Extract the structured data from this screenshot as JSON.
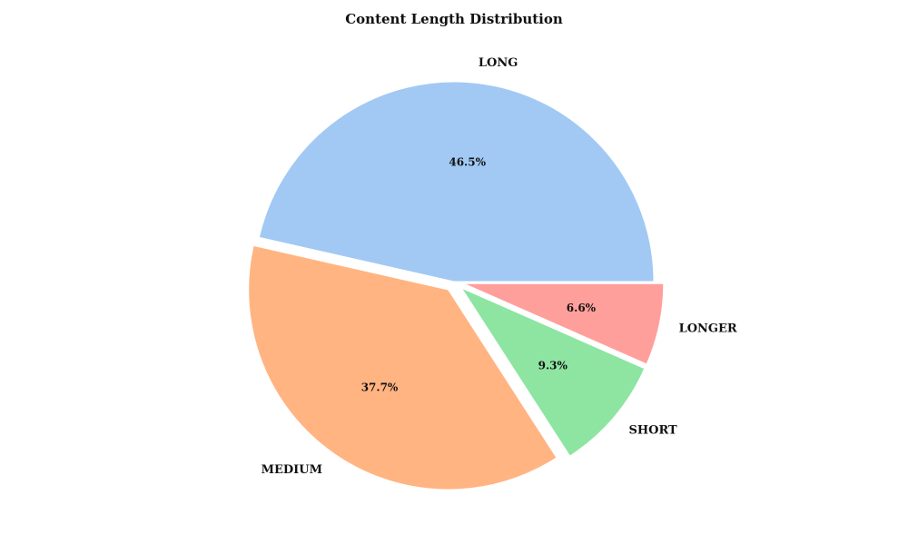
{
  "chart_data": {
    "type": "pie",
    "title": "Content Length Distribution",
    "slices": [
      {
        "label": "LONG",
        "value": 46.5,
        "pct_label": "46.5%",
        "color": "#a1c9f4",
        "explode": 0.0
      },
      {
        "label": "MEDIUM",
        "value": 37.7,
        "pct_label": "37.7%",
        "color": "#ffb482",
        "explode": 0.05
      },
      {
        "label": "SHORT",
        "value": 9.3,
        "pct_label": "9.3%",
        "color": "#8de5a1",
        "explode": 0.05
      },
      {
        "label": "LONGER",
        "value": 6.6,
        "pct_label": "6.6%",
        "color": "#ff9f9b",
        "explode": 0.05
      }
    ],
    "start_angle_deg": 0,
    "direction": "counterclockwise",
    "wedge_edge_color": "#ffffff"
  }
}
